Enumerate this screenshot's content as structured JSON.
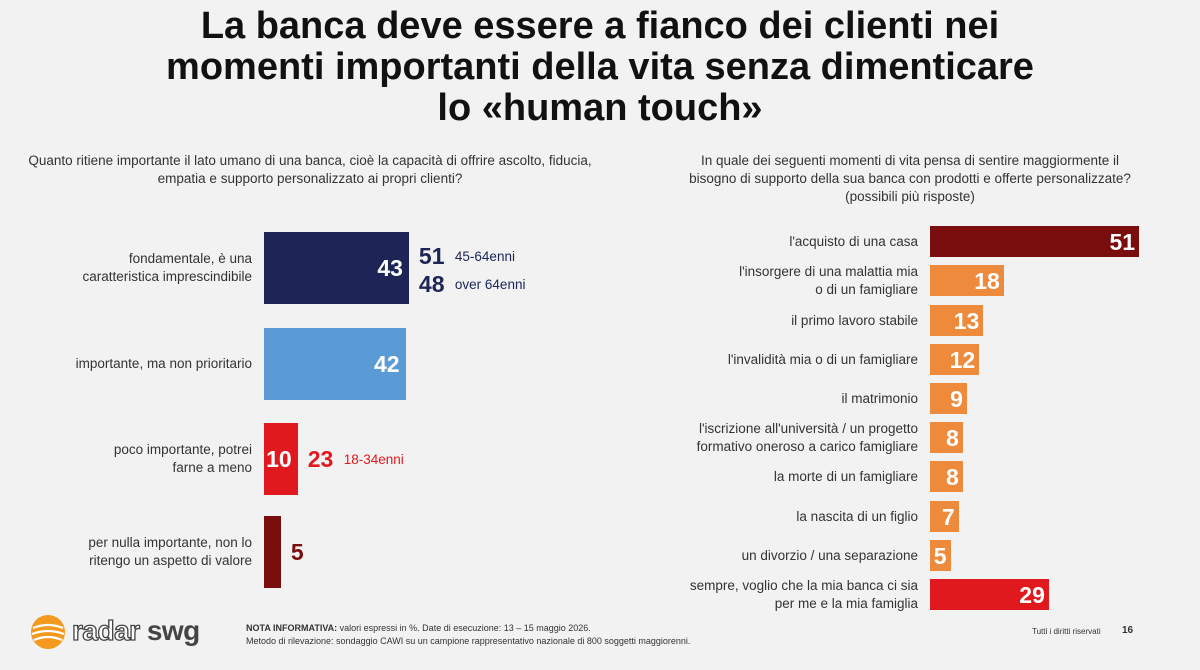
{
  "title_lines": [
    "La banca deve essere a fianco dei clienti nei",
    "momenti importanti della vita senza dimenticare",
    "lo «human touch»"
  ],
  "chart_data": [
    {
      "type": "bar",
      "orientation": "horizontal",
      "question": "Quanto ritiene importante il lato umano di una banca, cioè la capacità di offrire ascolto, fiducia, empatia e supporto personalizzato ai propri clienti?",
      "categories": [
        [
          "fondamentale, è una",
          "caratteristica imprescindibile"
        ],
        [
          "importante, ma non prioritario"
        ],
        [
          "poco importante, potrei",
          "farne a meno"
        ],
        [
          "per nulla importante, non lo",
          "ritengo un aspetto di valore"
        ]
      ],
      "values": [
        43,
        42,
        10,
        5
      ],
      "colors": [
        "#1c2556",
        "#5b9bd5",
        "#e0191e",
        "#7a0d0d"
      ],
      "annotations": [
        [
          {
            "value": "51",
            "label": "45-64enni",
            "color": "#1c2556"
          },
          {
            "value": "48",
            "label": "over 64enni",
            "color": "#1c2556"
          }
        ],
        [],
        [
          {
            "value": "23",
            "label": "18-34enni",
            "color": "#e0191e"
          }
        ],
        []
      ]
    },
    {
      "type": "bar",
      "orientation": "horizontal",
      "question_lines": [
        "In quale dei seguenti momenti di vita pensa di sentire maggiormente il",
        "bisogno di supporto della sua banca con prodotti e offerte personalizzate?",
        "(possibili più risposte)"
      ],
      "categories": [
        [
          "l'acquisto di una casa"
        ],
        [
          "l'insorgere di una malattia mia",
          "o di un famigliare"
        ],
        [
          "il primo lavoro stabile"
        ],
        [
          "l'invalidità mia o di un famigliare"
        ],
        [
          "il matrimonio"
        ],
        [
          "l'iscrizione all'università / un progetto",
          "formativo oneroso a carico famigliare"
        ],
        [
          "la morte di un famigliare"
        ],
        [
          "la nascita di un figlio"
        ],
        [
          "un divorzio / una separazione"
        ],
        [
          "sempre, voglio che la mia banca ci sia",
          "per me e la mia famiglia"
        ]
      ],
      "values": [
        51,
        18,
        13,
        12,
        9,
        8,
        8,
        7,
        5,
        29
      ],
      "colors": [
        "#7a0d0d",
        "#ee8a3c",
        "#ee8a3c",
        "#ee8a3c",
        "#ee8a3c",
        "#ee8a3c",
        "#ee8a3c",
        "#ee8a3c",
        "#ee8a3c",
        "#e0191e"
      ]
    }
  ],
  "footer": {
    "note_bold": "NOTA INFORMATIVA:",
    "note_line1": " valori espressi in %. Date di esecuzione: 13 – 15 maggio 2026.",
    "note_line2": "Metodo di rilevazione: sondaggio CAWI su un campione rappresentativo nazionale di 800 soggetti maggiorenni.",
    "rights": "Tutti i diritti riservati",
    "page": "16"
  },
  "logo": {
    "text_radar": "radar",
    "text_swg": " swg",
    "accent_color": "#f39a1e"
  }
}
